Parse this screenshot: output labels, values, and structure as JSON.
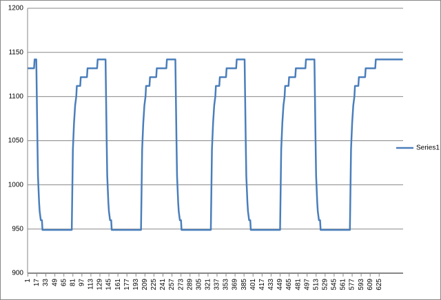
{
  "chart_data": {
    "type": "line",
    "x": [
      1,
      12,
      13,
      16,
      18,
      19,
      21,
      22,
      24,
      26,
      27,
      79,
      81,
      83,
      85,
      87,
      88,
      94,
      95,
      106,
      107,
      124,
      125,
      138,
      139,
      141,
      142,
      144,
      145,
      147,
      149,
      150,
      202,
      204,
      206,
      208,
      210,
      211,
      217,
      218,
      229,
      230,
      247,
      248,
      261,
      263,
      265,
      266,
      268,
      269,
      271,
      273,
      274,
      326,
      328,
      330,
      332,
      334,
      335,
      341,
      342,
      353,
      354,
      371,
      372,
      385,
      386,
      388,
      389,
      391,
      392,
      394,
      396,
      397,
      449,
      451,
      453,
      455,
      457,
      458,
      464,
      465,
      476,
      477,
      494,
      495,
      508,
      510,
      512,
      513,
      515,
      516,
      518,
      520,
      521,
      573,
      575,
      577,
      579,
      581,
      582,
      588,
      589,
      600,
      601,
      618,
      619,
      667
    ],
    "series": [
      {
        "name": "Series1",
        "color": "#4a7ebb",
        "values": [
          1132,
          1132,
          1142,
          1142,
          1050,
          1010,
          980,
          970,
          960,
          960,
          949,
          949,
          1040,
          1070,
          1090,
          1100,
          1112,
          1112,
          1122,
          1122,
          1132,
          1132,
          1142,
          1142,
          1142,
          1050,
          1010,
          980,
          970,
          960,
          960,
          949,
          949,
          1040,
          1070,
          1090,
          1100,
          1112,
          1112,
          1122,
          1122,
          1132,
          1132,
          1142,
          1142,
          1142,
          1050,
          1010,
          980,
          970,
          960,
          960,
          949,
          949,
          1040,
          1070,
          1090,
          1100,
          1112,
          1112,
          1122,
          1122,
          1132,
          1132,
          1142,
          1142,
          1142,
          1050,
          1010,
          980,
          970,
          960,
          960,
          949,
          949,
          1040,
          1070,
          1090,
          1100,
          1112,
          1112,
          1122,
          1122,
          1132,
          1132,
          1142,
          1142,
          1142,
          1050,
          1010,
          980,
          970,
          960,
          960,
          949,
          949,
          1040,
          1070,
          1090,
          1100,
          1112,
          1112,
          1122,
          1122,
          1132,
          1132,
          1142,
          1142
        ]
      }
    ],
    "xlim": [
      0.5,
      667.5
    ],
    "xticks": [
      1,
      17,
      33,
      49,
      65,
      81,
      97,
      113,
      129,
      145,
      161,
      177,
      193,
      209,
      225,
      241,
      257,
      273,
      289,
      305,
      321,
      337,
      353,
      369,
      385,
      401,
      417,
      433,
      449,
      465,
      481,
      497,
      513,
      529,
      545,
      561,
      577,
      593,
      609,
      625
    ],
    "ylim": [
      900,
      1200
    ],
    "yticks": [
      900,
      950,
      1000,
      1050,
      1100,
      1150,
      1200
    ],
    "grid": true,
    "legend": "right"
  }
}
